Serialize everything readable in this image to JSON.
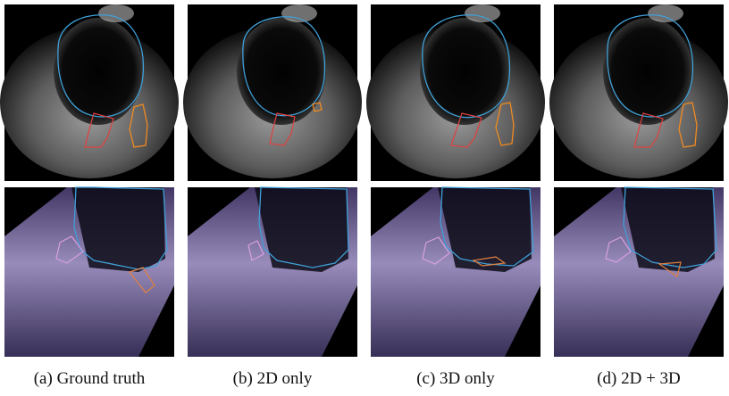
{
  "figure": {
    "captions": [
      "(a) Ground truth",
      "(b) 2D only",
      "(c) 3D only",
      "(d) 2D + 3D"
    ]
  }
}
